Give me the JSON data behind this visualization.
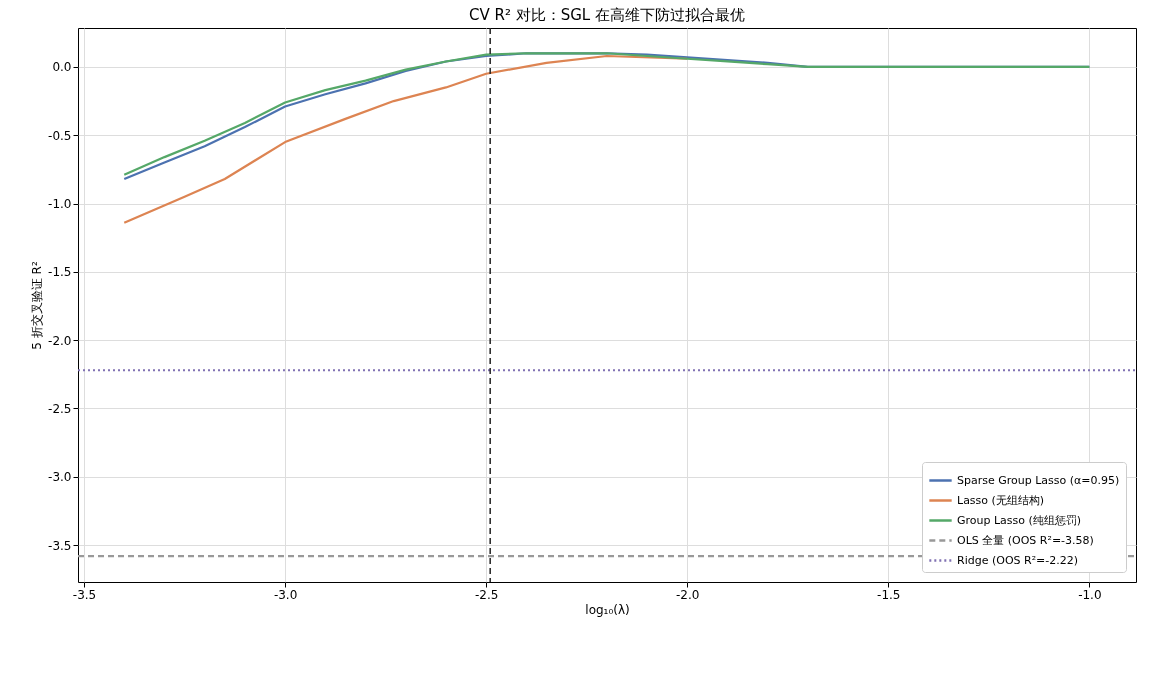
{
  "chart_data": {
    "type": "line",
    "title": "CV R² 对比：SGL 在高维下防过拟合最优",
    "xlabel": "log₁₀(λ)",
    "ylabel": "5 折交叉验证 R²",
    "xlim": [
      -3.515,
      -0.884
    ],
    "ylim": [
      -3.77,
      0.285
    ],
    "xticks": [
      {
        "value": -3.5,
        "label": "-3.5"
      },
      {
        "value": -3.0,
        "label": "-3.0"
      },
      {
        "value": -2.5,
        "label": "-2.5"
      },
      {
        "value": -2.0,
        "label": "-2.0"
      },
      {
        "value": -1.5,
        "label": "-1.5"
      },
      {
        "value": -1.0,
        "label": "-1.0"
      }
    ],
    "yticks": [
      {
        "value": 0,
        "label": "0.0"
      },
      -0.5,
      {
        "value": -1.0,
        "label": "-1.0"
      },
      -1.5,
      {
        "value": -2.0,
        "label": "-2.0"
      },
      -2.5,
      {
        "value": -3.0,
        "label": "-3.0"
      },
      -3.5
    ],
    "grid": true,
    "legend": "bottom right",
    "line_style": "solid",
    "marker": "none",
    "series": [
      {
        "name": "Sparse Group Lasso (α=0.95)",
        "color": "#4c72b0",
        "x": [
          -3.4,
          -3.3,
          -3.2,
          -3.1,
          -3.0,
          -2.9,
          -2.8,
          -2.7,
          -2.6,
          -2.5,
          -2.4,
          -2.3,
          -2.2,
          -2.1,
          -2.0,
          -1.9,
          -1.8,
          -1.7,
          -1.6,
          -1.0
        ],
        "values": [
          -0.82,
          -0.7,
          -0.58,
          -0.44,
          -0.29,
          -0.2,
          -0.12,
          -0.03,
          0.04,
          0.08,
          0.1,
          0.1,
          0.1,
          0.09,
          0.07,
          0.05,
          0.03,
          0.0,
          0.0,
          0.0
        ]
      },
      {
        "name": "Lasso (无组结构)",
        "color": "#dd8452",
        "x": [
          -3.4,
          -3.25,
          -3.15,
          -3.0,
          -2.85,
          -2.73,
          -2.6,
          -2.5,
          -2.35,
          -2.2,
          -2.0
        ],
        "values": [
          -1.14,
          -0.95,
          -0.82,
          -0.55,
          -0.38,
          -0.25,
          -0.15,
          -0.05,
          0.03,
          0.08,
          0.06
        ]
      },
      {
        "name": "Group Lasso (纯组惩罚)",
        "color": "#55a868",
        "x": [
          -3.4,
          -3.3,
          -3.2,
          -3.1,
          -3.0,
          -2.9,
          -2.8,
          -2.7,
          -2.6,
          -2.5,
          -2.4,
          -2.3,
          -2.2,
          -2.1,
          -2.0,
          -1.9,
          -1.8,
          -1.7,
          -1.6,
          -1.0
        ],
        "values": [
          -0.79,
          -0.66,
          -0.54,
          -0.41,
          -0.26,
          -0.17,
          -0.1,
          -0.02,
          0.04,
          0.09,
          0.1,
          0.1,
          0.1,
          0.08,
          0.06,
          0.04,
          0.02,
          0.0,
          0.0,
          0.0
        ]
      },
      {
        "name": "OLS 全量 (OOS R²=-3.58)",
        "color": "#999999",
        "line_style": "dashed",
        "x": [
          -3.515,
          -0.884
        ],
        "values": [
          -3.58,
          -3.58
        ]
      },
      {
        "name": "Ridge (OOS R²=-2.22)",
        "color": "#8172b3",
        "line_style": "dotted",
        "x": [
          -3.515,
          -0.884
        ],
        "values": [
          -2.22,
          -2.22
        ]
      }
    ],
    "ref_lines": [
      {
        "axis": "x",
        "value": -2.49,
        "color": "#222222",
        "line_style": "dashed"
      }
    ]
  }
}
